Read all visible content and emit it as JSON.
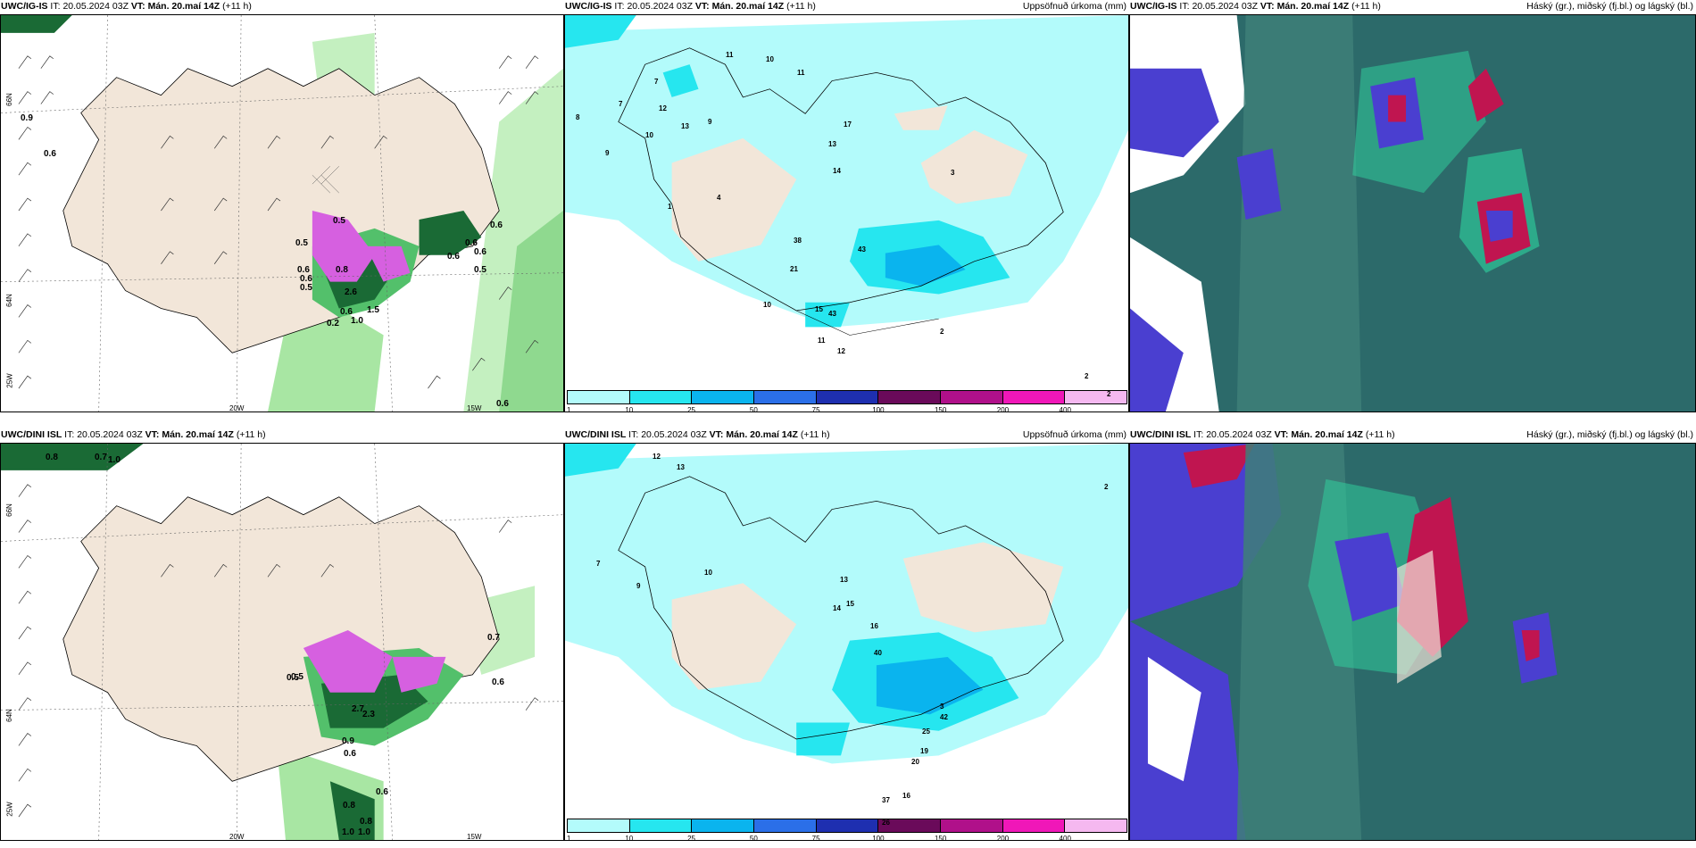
{
  "colors": {
    "land": "#f2e6d9",
    "precip_light": "#b3fbfb",
    "precip_mid": "#26e6ef",
    "precip_dark": "#0ab4ee",
    "pink_high": "#d660e0",
    "green_light": "#c4f0c0",
    "green_mid": "#53c06b",
    "green_dark": "#1a6a35",
    "cloud_teal": "#2c6a6a",
    "cloud_green": "#2fd6a0",
    "cloud_blue": "#4a3fd0",
    "cloud_red": "#c01550"
  },
  "rows": [
    {
      "panels": [
        {
          "model": "UWC/IG-IS",
          "it_label": "IT:",
          "it_value": "20.05.2024 03Z",
          "vt_label": "VT:",
          "vt_value": "Mán. 20.maí 14Z",
          "lead": "(+11 h)",
          "right_title": "",
          "axis": {
            "lat_top": "66N",
            "lat_mid": "64N",
            "lon_left": "25W",
            "lon_mid": "20W",
            "lon_right": "15W"
          },
          "values": [
            "0.9",
            "0.6",
            "0.6",
            "0.5",
            "0.6",
            "0.6",
            "0.5",
            "0.8",
            "2.6",
            "1.5",
            "1.0",
            "0.6",
            "0.2",
            "0.5",
            "0.6",
            "0.6",
            "0.6",
            "0.5",
            "0.6"
          ]
        },
        {
          "model": "UWC/IG-IS",
          "it_label": "IT:",
          "it_value": "20.05.2024 03Z",
          "vt_label": "VT:",
          "vt_value": "Mán. 20.maí 14Z",
          "lead": "(+11 h)",
          "right_title": "Uppsöfnuð úrkoma (mm)",
          "values": [
            "11",
            "10",
            "8",
            "7",
            "7",
            "9",
            "12",
            "13",
            "10",
            "9",
            "11",
            "17",
            "13",
            "14",
            "43",
            "38",
            "21",
            "10",
            "15",
            "43",
            "11",
            "12",
            "2",
            "2",
            "2",
            "1",
            "4",
            "3"
          ]
        },
        {
          "model": "UWC/IG-IS",
          "it_label": "IT:",
          "it_value": "20.05.2024 03Z",
          "vt_label": "VT:",
          "vt_value": "Mán. 20.maí 14Z",
          "lead": "(+11 h)",
          "right_title": "Háský (gr.), miðský (fj.bl.) og lágský (bl.)"
        }
      ]
    },
    {
      "panels": [
        {
          "model": "UWC/DINI ISL",
          "it_label": "IT:",
          "it_value": "20.05.2024 03Z",
          "vt_label": "VT:",
          "vt_value": "Mán. 20.maí 14Z",
          "lead": "(+11 h)",
          "right_title": "",
          "axis": {
            "lat_top": "66N",
            "lat_mid": "64N",
            "lon_left": "25W",
            "lon_mid": "20W",
            "lon_right": "15W"
          },
          "values": [
            "0.8",
            "0.7",
            "1.0",
            "0.5",
            "2.7",
            "2.3",
            "0.9",
            "0.6",
            "0.8",
            "0.8",
            "1.0",
            "1.0",
            "0.6",
            "0.7",
            "0.6",
            "0.5"
          ]
        },
        {
          "model": "UWC/DINI ISL",
          "it_label": "IT:",
          "it_value": "20.05.2024 03Z",
          "vt_label": "VT:",
          "vt_value": "Mán. 20.maí 14Z",
          "lead": "(+11 h)",
          "right_title": "Uppsöfnuð úrkoma (mm)",
          "values": [
            "12",
            "13",
            "7",
            "9",
            "10",
            "13",
            "15",
            "14",
            "16",
            "40",
            "42",
            "25",
            "19",
            "20",
            "16",
            "37",
            "26",
            "3",
            "2"
          ]
        },
        {
          "model": "UWC/DINI ISL",
          "it_label": "IT:",
          "it_value": "20.05.2024 03Z",
          "vt_label": "VT:",
          "vt_value": "Mán. 20.maí 14Z",
          "lead": "(+11 h)",
          "right_title": "Háský (gr.), miðský (fj.bl.) og lágský (bl.)"
        }
      ]
    }
  ],
  "colorbar": {
    "ticks": [
      "1",
      "10",
      "25",
      "50",
      "75",
      "100",
      "150",
      "200",
      "400"
    ],
    "colors": [
      "#b3fbfb",
      "#26e6ef",
      "#0ab4ee",
      "#2b6fe8",
      "#1e2fb0",
      "#6a0a5a",
      "#b0108a",
      "#f017b8",
      "#f5b8f0"
    ]
  }
}
